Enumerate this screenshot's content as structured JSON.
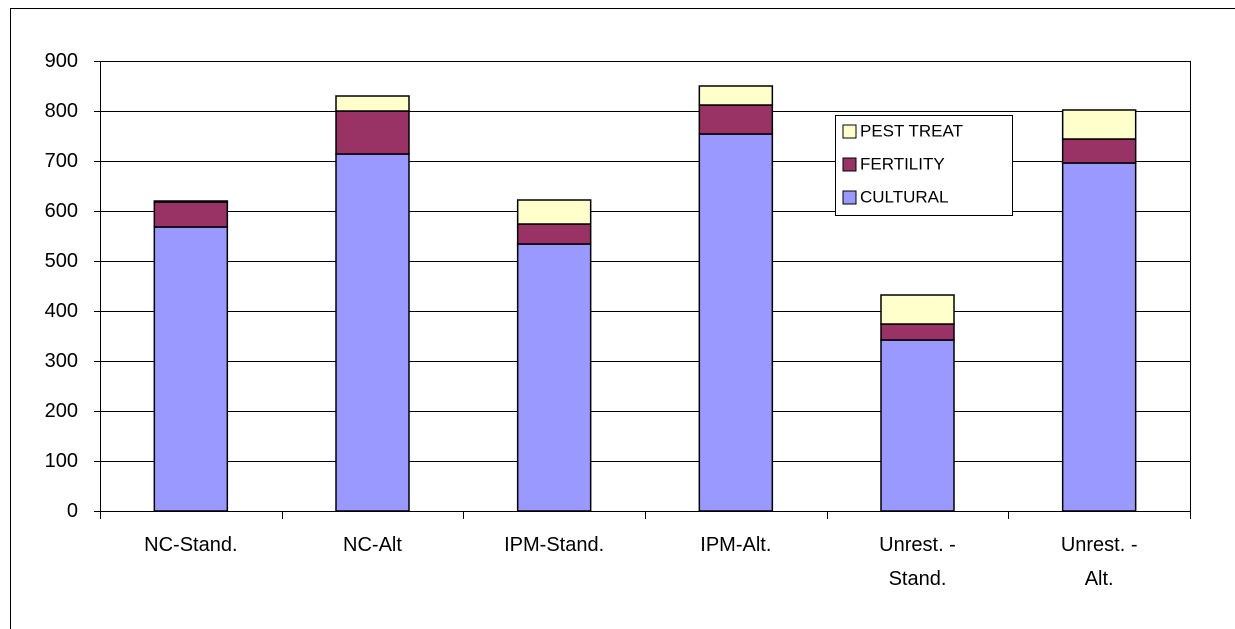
{
  "chart_data": {
    "type": "stacked-bar",
    "categories": [
      "NC-Stand.",
      "NC-Alt",
      "IPM-Stand.",
      "IPM-Alt.",
      "Unrest. -\nStand.",
      "Unrest. -\nAlt."
    ],
    "series": [
      {
        "name": "CULTURAL",
        "color": "#9999ff",
        "values": [
          568,
          714,
          534,
          754,
          342,
          696
        ]
      },
      {
        "name": "FERTILITY",
        "color": "#993366",
        "values": [
          50,
          86,
          40,
          58,
          32,
          48
        ]
      },
      {
        "name": "PEST TREAT",
        "color": "#ffffcc",
        "values": [
          2,
          30,
          48,
          38,
          58,
          58
        ]
      }
    ],
    "ylim": [
      0,
      900
    ],
    "yticks": [
      0,
      100,
      200,
      300,
      400,
      500,
      600,
      700,
      800,
      900
    ],
    "grid": true
  }
}
